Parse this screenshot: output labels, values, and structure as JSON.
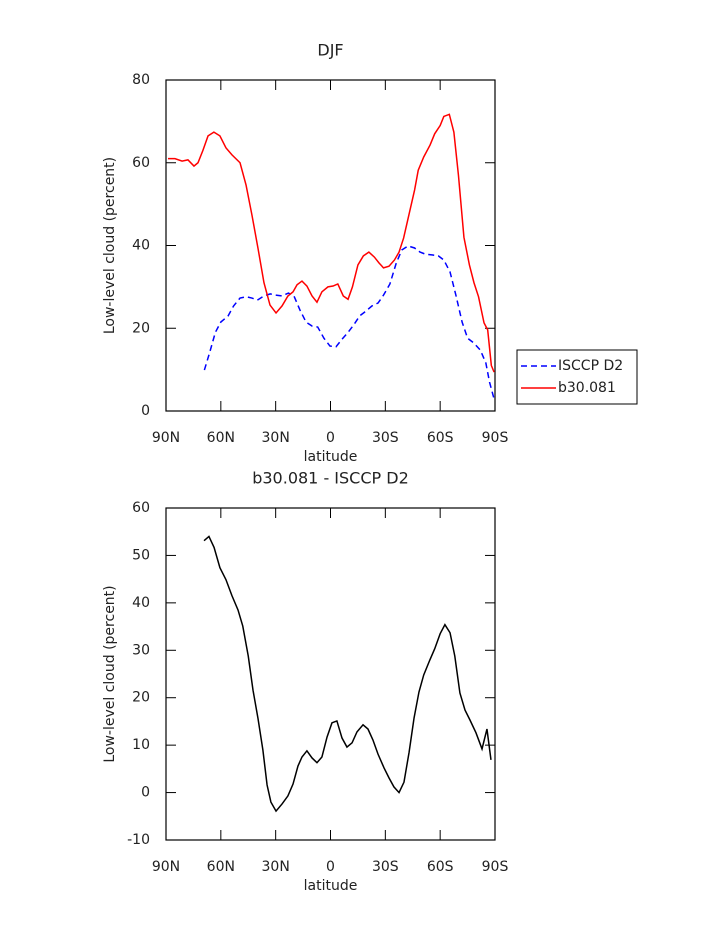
{
  "chart_data": [
    {
      "type": "line",
      "title": "DJF",
      "xlabel": "latitude",
      "ylabel": "Low-level cloud (percent)",
      "xlim": [
        90,
        -90
      ],
      "xticks": [
        {
          "value": 90,
          "label": "90N"
        },
        {
          "value": 60,
          "label": "60N"
        },
        {
          "value": 30,
          "label": "30N"
        },
        0,
        {
          "value": -30,
          "label": "30S"
        },
        {
          "value": -60,
          "label": "60S"
        },
        {
          "value": -90,
          "label": "90S"
        }
      ],
      "ylim": [
        0,
        80
      ],
      "yticks": [
        0,
        20,
        40,
        60,
        80
      ],
      "legend": "right",
      "series": [
        {
          "name": "ISCCP D2",
          "color": "#0000ff",
          "style": "dashed",
          "x": [
            69,
            66,
            63,
            60,
            56,
            53,
            49.5,
            46,
            43,
            40,
            36.4,
            33,
            30,
            26.5,
            23,
            20,
            16.7,
            13.4,
            10,
            7,
            3.6,
            0.3,
            -3,
            -6,
            -9.6,
            -13,
            -16,
            -19,
            -22.7,
            -26,
            -29,
            -32.5,
            -36,
            -39,
            -42.4,
            -46,
            -49,
            -52,
            -56,
            -59,
            -62,
            -65.4,
            -68.6,
            -72,
            -75,
            -78.5,
            -82,
            -85,
            -87,
            -89.5
          ],
          "values": [
            9.9,
            14.3,
            19,
            21.5,
            23,
            25.4,
            27.3,
            27.6,
            27.3,
            26.8,
            27.8,
            28.3,
            28,
            27.8,
            28.5,
            27.8,
            24.4,
            21.5,
            20.5,
            20.3,
            17.6,
            15.7,
            15.5,
            17.2,
            19,
            21,
            23,
            24,
            25.4,
            26.1,
            28,
            30.7,
            35.8,
            38.9,
            39.9,
            39.4,
            38.4,
            37.9,
            37.7,
            37.5,
            36.5,
            33.6,
            28,
            21.5,
            17.6,
            16.4,
            14.7,
            11.6,
            7,
            2.9
          ]
        },
        {
          "name": "b30.081",
          "color": "#ff0000",
          "style": "solid",
          "x": [
            88.9,
            85.1,
            81.2,
            78,
            74.7,
            72.5,
            69.8,
            67,
            63.8,
            60.5,
            57.2,
            53.9,
            49.5,
            46.2,
            43,
            39.7,
            36.4,
            33.1,
            29.8,
            26.5,
            23.3,
            20.5,
            18.3,
            15.6,
            12.9,
            10.1,
            7.4,
            4.7,
            1.4,
            -1.4,
            -4,
            -7,
            -9.6,
            -12,
            -15,
            -18,
            -21,
            -24,
            -26.5,
            -29,
            -32,
            -35,
            -37.5,
            -40,
            -43,
            -46,
            -48,
            -51,
            -54.5,
            -57,
            -60,
            -62,
            -65,
            -67.5,
            -70,
            -73,
            -76,
            -78.5,
            -81,
            -84,
            -86,
            -88,
            -89.5
          ],
          "values": [
            61,
            61,
            60.4,
            60.7,
            59.2,
            60,
            63,
            66.5,
            67.4,
            66.5,
            63.6,
            61.9,
            60,
            54.6,
            47.4,
            39.4,
            31,
            25.6,
            23.7,
            25.4,
            27.8,
            28.8,
            30.5,
            31.4,
            30.2,
            27.8,
            26.3,
            28.8,
            30,
            30.2,
            30.7,
            27.8,
            27,
            30,
            35.3,
            37.5,
            38.4,
            37.2,
            35.8,
            34.6,
            35,
            36.5,
            38.4,
            41.8,
            47.6,
            53.4,
            58.2,
            61.4,
            64.3,
            67,
            69,
            71.2,
            71.7,
            67.4,
            57,
            42,
            35.3,
            31,
            27.6,
            21.3,
            19.6,
            11,
            9.4
          ]
        }
      ]
    },
    {
      "type": "line",
      "title": "b30.081 - ISCCP D2",
      "xlabel": "latitude",
      "ylabel": "Low-level cloud (percent)",
      "xlim": [
        90,
        -90
      ],
      "xticks": [
        {
          "value": 90,
          "label": "90N"
        },
        {
          "value": 60,
          "label": "60N"
        },
        {
          "value": 30,
          "label": "30N"
        },
        0,
        {
          "value": -30,
          "label": "30S"
        },
        {
          "value": -60,
          "label": "60S"
        },
        {
          "value": -90,
          "label": "90S"
        }
      ],
      "ylim": [
        -10,
        60
      ],
      "yticks": [
        -10,
        0,
        10,
        20,
        30,
        40,
        50,
        60
      ],
      "series": [
        {
          "color": "#000000",
          "style": "solid",
          "x": [
            69.2,
            66.5,
            63.7,
            60.5,
            57.2,
            53.9,
            50.6,
            48,
            45,
            42.4,
            39.7,
            37,
            34.7,
            32.6,
            29.8,
            26.5,
            23.3,
            20.5,
            17.8,
            15.6,
            12.9,
            10.1,
            7.4,
            4.7,
            1.9,
            -0.8,
            -3.5,
            -6.3,
            -9,
            -11.8,
            -14.5,
            -17.8,
            -20.5,
            -23.2,
            -26,
            -29.3,
            -32,
            -34.7,
            -37.5,
            -40.2,
            -43,
            -45.7,
            -48.4,
            -51,
            -54.4,
            -57,
            -60,
            -62.6,
            -65.4,
            -68,
            -70.8,
            -73.6,
            -76.3,
            -79.6,
            -82.9,
            -85.6,
            -87.8
          ],
          "values": [
            53.1,
            54,
            51.7,
            47.4,
            44.9,
            41.5,
            38.5,
            35.1,
            28.8,
            21.6,
            15.7,
            9,
            1.6,
            -2,
            -3.9,
            -2.4,
            -0.7,
            1.8,
            5.6,
            7.5,
            8.8,
            7.3,
            6.3,
            7.5,
            11.7,
            14.7,
            15.1,
            11.5,
            9.6,
            10.5,
            12.8,
            14.3,
            13.4,
            11.1,
            8.1,
            5.2,
            3.1,
            1.2,
            0,
            2.2,
            8.5,
            15.7,
            21.2,
            24.8,
            28,
            30.3,
            33.5,
            35.4,
            33.7,
            28.8,
            21,
            17.4,
            15.3,
            12.6,
            9.2,
            13.4,
            6.9
          ]
        }
      ]
    }
  ]
}
